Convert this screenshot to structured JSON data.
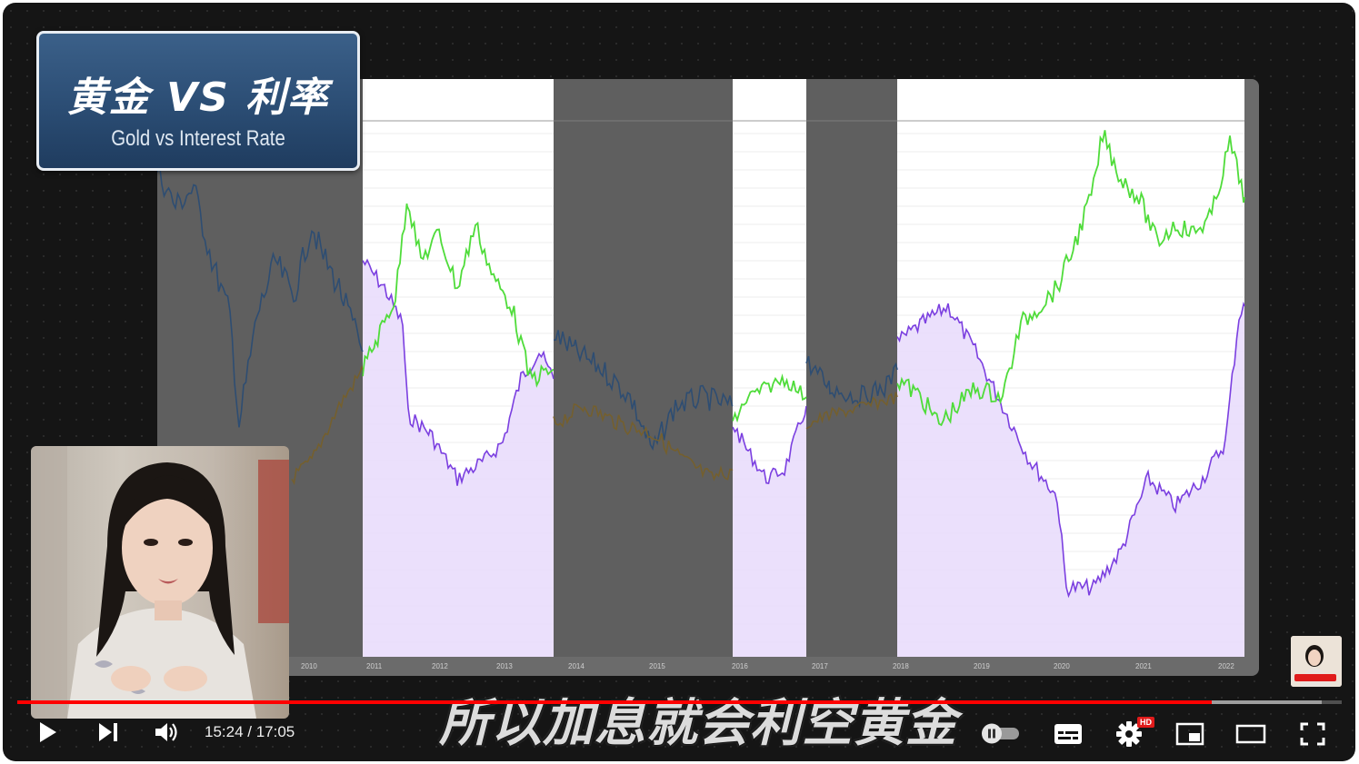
{
  "title_card": {
    "chinese": "黄金 VS 利率",
    "english": "Gold vs Interest Rate"
  },
  "subtitle": "所以加息就会利空黄金",
  "player": {
    "current_time": "15:24",
    "duration": "17:05",
    "time_display": "15:24 / 17:05",
    "progress_fraction": 0.902,
    "buffered_fraction": 0.985,
    "hd_label": "HD",
    "accent_color": "#ff0000"
  },
  "controls": {
    "play_icon": "play-icon",
    "next_icon": "next-icon",
    "volume_icon": "volume-icon",
    "autoplay_icon": "autoplay-toggle-icon",
    "captions_icon": "captions-icon",
    "settings_icon": "gear-icon",
    "miniplayer_icon": "miniplayer-icon",
    "theater_icon": "theater-icon",
    "fullscreen_icon": "fullscreen-icon"
  },
  "chart_data": {
    "type": "line",
    "x_ticks": [
      "2010",
      "2011",
      "2012",
      "2013",
      "2014",
      "2015",
      "2016",
      "2017",
      "2018",
      "2019",
      "2020",
      "2021",
      "2022"
    ],
    "series_colors": {
      "green": "#4fdc3a",
      "purple": "#7b3fe0",
      "blue": "#3a7ad8",
      "gold": "#c89a2a"
    },
    "highlighted_periods": [
      [
        "2011",
        "2013.9"
      ],
      [
        "2016",
        "2016.9"
      ],
      [
        "2018.1",
        "2022.3"
      ]
    ]
  }
}
